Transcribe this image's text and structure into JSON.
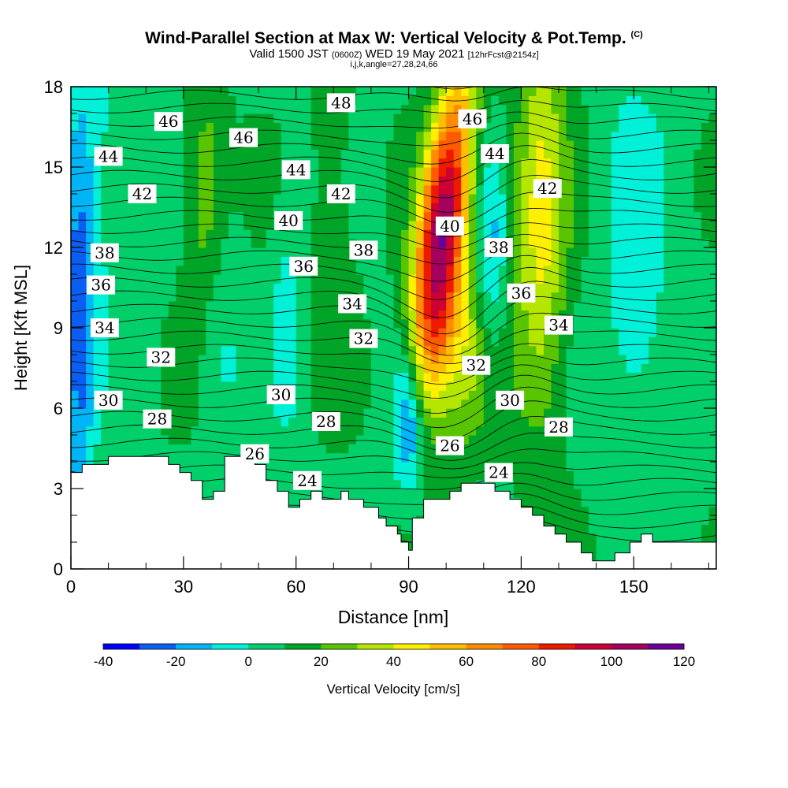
{
  "header": {
    "title": "Wind-Parallel Section at Max W: Vertical Velocity & Pot.Temp.",
    "copyright": "(C)",
    "valid_a": "Valid 1500 JST",
    "valid_utc": "(0600Z)",
    "valid_b": "WED 19 May 2021",
    "forecast": "[12hrFcst@2154z]",
    "indices": "i,j,k,angle=27,28,24,66"
  },
  "chart_data": {
    "type": "heatmap",
    "title": "Wind-Parallel Section at Max W: Vertical Velocity & Pot.Temp.",
    "xlabel": "Distance [nm]",
    "ylabel": "Height [Kft MSL]",
    "xlim": [
      0,
      172
    ],
    "ylim": [
      0,
      18
    ],
    "x_ticks": [
      0,
      30,
      60,
      90,
      120,
      150
    ],
    "y_ticks": [
      0,
      3,
      6,
      9,
      12,
      15,
      18
    ],
    "colorbar": {
      "label": "Vertical Velocity [cm/s]",
      "levels": [
        -40,
        -30,
        -20,
        -10,
        0,
        10,
        20,
        30,
        40,
        50,
        60,
        70,
        80,
        90,
        100,
        110,
        120
      ],
      "tick_labels": [
        -40,
        -20,
        0,
        20,
        40,
        60,
        80,
        100,
        120
      ],
      "colors": [
        "#0000ff",
        "#0a5ff2",
        "#00b5f5",
        "#00f0d8",
        "#00cf6a",
        "#00a528",
        "#59c400",
        "#b5e600",
        "#ffef00",
        "#ffbe00",
        "#ff8c00",
        "#ff5a00",
        "#ee1a00",
        "#cc0033",
        "#a4005e",
        "#6a009a"
      ]
    },
    "w_maximum": {
      "x": 96,
      "height": 11.5,
      "value": 100
    },
    "theta_contours": {
      "interval": 1,
      "labels": [
        {
          "x": 26,
          "h": 16.7,
          "v": "46"
        },
        {
          "x": 46,
          "h": 16.1,
          "v": "46"
        },
        {
          "x": 72,
          "h": 17.4,
          "v": "48"
        },
        {
          "x": 107,
          "h": 16.8,
          "v": "46"
        },
        {
          "x": 10,
          "h": 15.4,
          "v": "44"
        },
        {
          "x": 60,
          "h": 14.9,
          "v": "44"
        },
        {
          "x": 113,
          "h": 15.5,
          "v": "44"
        },
        {
          "x": 19,
          "h": 14.0,
          "v": "42"
        },
        {
          "x": 72,
          "h": 14.0,
          "v": "42"
        },
        {
          "x": 127,
          "h": 14.2,
          "v": "42"
        },
        {
          "x": 58,
          "h": 13.0,
          "v": "40"
        },
        {
          "x": 101,
          "h": 12.8,
          "v": "40"
        },
        {
          "x": 9,
          "h": 11.8,
          "v": "38"
        },
        {
          "x": 78,
          "h": 11.9,
          "v": "38"
        },
        {
          "x": 114,
          "h": 12.0,
          "v": "38"
        },
        {
          "x": 62,
          "h": 11.3,
          "v": "36"
        },
        {
          "x": 8,
          "h": 10.6,
          "v": "36"
        },
        {
          "x": 120,
          "h": 10.3,
          "v": "36"
        },
        {
          "x": 75,
          "h": 9.9,
          "v": "34"
        },
        {
          "x": 9,
          "h": 9.0,
          "v": "34"
        },
        {
          "x": 130,
          "h": 9.1,
          "v": "34"
        },
        {
          "x": 78,
          "h": 8.6,
          "v": "32"
        },
        {
          "x": 24,
          "h": 7.9,
          "v": "32"
        },
        {
          "x": 108,
          "h": 7.6,
          "v": "32"
        },
        {
          "x": 56,
          "h": 6.5,
          "v": "30"
        },
        {
          "x": 10,
          "h": 6.3,
          "v": "30"
        },
        {
          "x": 117,
          "h": 6.3,
          "v": "30"
        },
        {
          "x": 23,
          "h": 5.6,
          "v": "28"
        },
        {
          "x": 68,
          "h": 5.5,
          "v": "28"
        },
        {
          "x": 130,
          "h": 5.3,
          "v": "28"
        },
        {
          "x": 49,
          "h": 4.3,
          "v": "26"
        },
        {
          "x": 101,
          "h": 4.6,
          "v": "26"
        },
        {
          "x": 114,
          "h": 3.6,
          "v": "24"
        },
        {
          "x": 63,
          "h": 3.3,
          "v": "24"
        }
      ]
    },
    "terrain": {
      "x": [
        0,
        3,
        3,
        10,
        10,
        26,
        26,
        29,
        29,
        32,
        32,
        35,
        35,
        38,
        38,
        41,
        41,
        49,
        49,
        52,
        52,
        55,
        55,
        58,
        58,
        61,
        61,
        64,
        64,
        67,
        67,
        72,
        72,
        74,
        74,
        78,
        78,
        82,
        82,
        84,
        84,
        87,
        87,
        88,
        88,
        90,
        90,
        91,
        91,
        94,
        94,
        101,
        101,
        104,
        104,
        113,
        113,
        117,
        117,
        120,
        120,
        123,
        123,
        126,
        126,
        129,
        129,
        132,
        132,
        136,
        136,
        139,
        139,
        145,
        145,
        149,
        149,
        152,
        152,
        155,
        155,
        163,
        163,
        172,
        172,
        0
      ],
      "h": [
        3.6,
        3.6,
        3.9,
        3.9,
        4.2,
        4.2,
        3.9,
        3.9,
        3.6,
        3.6,
        3.3,
        3.3,
        2.6,
        2.6,
        2.9,
        2.9,
        4.2,
        4.2,
        3.9,
        3.9,
        3.3,
        3.3,
        2.9,
        2.9,
        2.3,
        2.3,
        2.6,
        2.6,
        2.9,
        2.9,
        2.6,
        2.6,
        2.9,
        2.9,
        2.6,
        2.6,
        2.3,
        2.3,
        1.9,
        1.9,
        1.6,
        1.6,
        1.3,
        1.3,
        1.0,
        1.0,
        0.7,
        0.7,
        1.9,
        1.9,
        2.6,
        2.6,
        2.9,
        2.9,
        3.2,
        3.2,
        2.9,
        2.9,
        2.6,
        2.6,
        2.3,
        2.3,
        2.0,
        2.0,
        1.6,
        1.6,
        1.3,
        1.3,
        1.0,
        1.0,
        0.6,
        0.6,
        0.3,
        0.3,
        0.6,
        0.6,
        1.0,
        1.0,
        1.3,
        1.3,
        1.0,
        1.0,
        1.0,
        1.0,
        0,
        0
      ]
    }
  },
  "colorbar_tick_text": [
    "-40",
    "-20",
    "0",
    "20",
    "40",
    "60",
    "80",
    "100",
    "120"
  ],
  "x_tick_text": [
    "0",
    "30",
    "60",
    "90",
    "120",
    "150"
  ],
  "y_tick_text": [
    "0",
    "3",
    "6",
    "9",
    "12",
    "15",
    "18"
  ]
}
